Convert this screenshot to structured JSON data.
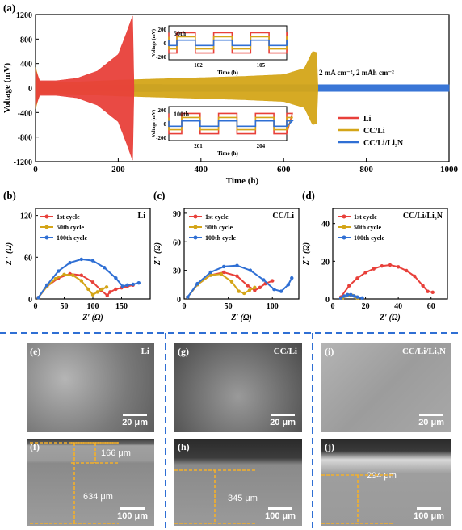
{
  "chart_data": [
    {
      "panel": "(a)",
      "type": "line",
      "xlabel": "Time (h)",
      "ylabel": "Voltage (mV)",
      "xlim": [
        0,
        1000
      ],
      "ylim": [
        -1200,
        1200
      ],
      "xticks": [
        0,
        200,
        400,
        600,
        800,
        1000
      ],
      "yticks": [
        -1200,
        -800,
        -400,
        0,
        400,
        800,
        1200
      ],
      "annotation": "2 mA cm⁻², 2 mAh cm⁻²",
      "series": [
        {
          "name": "Li",
          "color": "#e8403a",
          "envelope": {
            "x": [
              0,
              10,
              50,
              100,
              150,
              200,
              220,
              235,
              238
            ],
            "y": [
              300,
              120,
              120,
              160,
              280,
              550,
              900,
              1180,
              0
            ]
          }
        },
        {
          "name": "CC/Li",
          "color": "#d4a518",
          "envelope": {
            "x": [
              0,
              10,
              100,
              200,
              300,
              400,
              500,
              600,
              650,
              670,
              680,
              683
            ],
            "y": [
              340,
              90,
              100,
              130,
              150,
              170,
              190,
              220,
              320,
              600,
              580,
              0
            ]
          }
        },
        {
          "name": "CC/Li/Li₃N",
          "color": "#2f6fd4",
          "envelope": {
            "x": [
              0,
              10,
              200,
              400,
              600,
              800,
              1000
            ],
            "y": [
              250,
              60,
              60,
              55,
              55,
              55,
              55
            ]
          }
        }
      ],
      "insets": [
        {
          "label": "50th",
          "xlabel": "Time (h)",
          "ylabel": "Voltage (mV)",
          "xticks": [
            102,
            105
          ],
          "yticks": [
            -200,
            0,
            200
          ]
        },
        {
          "label": "100th",
          "xlabel": "Time (h)",
          "ylabel": "Voltage (mV)",
          "xticks": [
            201,
            204
          ],
          "yticks": [
            -200,
            0,
            200
          ]
        }
      ]
    },
    {
      "panel": "(b)",
      "type": "scatter",
      "sample": "Li",
      "xlabel": "Z′ (Ω)",
      "ylabel": "Z″ (Ω)",
      "xlim": [
        0,
        200
      ],
      "ylim": [
        0,
        130
      ],
      "xticks": [
        0,
        50,
        100,
        150
      ],
      "yticks": [
        0,
        60,
        120
      ],
      "series": [
        {
          "name": "1st cycle",
          "color": "#e8403a",
          "x": [
            5,
            20,
            40,
            60,
            80,
            100,
            115,
            125,
            130,
            140,
            150,
            160,
            170
          ],
          "y": [
            2,
            18,
            30,
            36,
            34,
            24,
            12,
            5,
            10,
            14,
            16,
            18,
            20
          ]
        },
        {
          "name": "50th cycle",
          "color": "#d4a518",
          "x": [
            5,
            20,
            35,
            50,
            65,
            80,
            92,
            100,
            108,
            116,
            124
          ],
          "y": [
            2,
            18,
            29,
            35,
            34,
            26,
            14,
            6,
            10,
            14,
            17
          ]
        },
        {
          "name": "100th cycle",
          "color": "#2f6fd4",
          "x": [
            5,
            20,
            40,
            60,
            80,
            100,
            120,
            140,
            152,
            160,
            170,
            180
          ],
          "y": [
            2,
            20,
            40,
            52,
            57,
            55,
            45,
            30,
            18,
            20,
            21,
            23
          ]
        }
      ]
    },
    {
      "panel": "(c)",
      "type": "scatter",
      "sample": "CC/Li",
      "xlabel": "Z′ (Ω)",
      "ylabel": "Z″ (Ω)",
      "xlim": [
        0,
        130
      ],
      "ylim": [
        0,
        95
      ],
      "xticks": [
        0,
        50,
        100
      ],
      "yticks": [
        0,
        30,
        60,
        90
      ],
      "series": [
        {
          "name": "1st cycle",
          "color": "#e8403a",
          "x": [
            4,
            15,
            30,
            45,
            60,
            72,
            80,
            86,
            92,
            100
          ],
          "y": [
            2,
            15,
            25,
            28,
            24,
            14,
            9,
            12,
            16,
            19
          ]
        },
        {
          "name": "50th cycle",
          "color": "#d4a518",
          "x": [
            4,
            15,
            30,
            42,
            54,
            62,
            68,
            74,
            80
          ],
          "y": [
            2,
            15,
            25,
            26,
            18,
            8,
            6,
            9,
            12
          ]
        },
        {
          "name": "100th cycle",
          "color": "#2f6fd4",
          "x": [
            4,
            15,
            30,
            45,
            60,
            75,
            90,
            102,
            110,
            118,
            122
          ],
          "y": [
            2,
            16,
            28,
            34,
            35,
            30,
            20,
            10,
            8,
            15,
            22
          ]
        }
      ]
    },
    {
      "panel": "(d)",
      "type": "scatter",
      "sample": "CC/Li/Li₃N",
      "xlabel": "Z′ (Ω)",
      "ylabel": "Z″ (Ω)",
      "xlim": [
        0,
        70
      ],
      "ylim": [
        0,
        48
      ],
      "xticks": [
        0,
        20,
        40,
        60
      ],
      "yticks": [
        0,
        20,
        40
      ],
      "series": [
        {
          "name": "1st cycle",
          "color": "#e8403a",
          "x": [
            5,
            10,
            15,
            20,
            25,
            30,
            35,
            40,
            45,
            50,
            55,
            58,
            61
          ],
          "y": [
            1,
            7,
            11,
            14,
            16,
            17.5,
            18,
            17,
            15,
            12,
            7,
            4,
            3.5
          ]
        },
        {
          "name": "50th cycle",
          "color": "#d4a518",
          "x": [
            6,
            8,
            10,
            12,
            14,
            15
          ],
          "y": [
            0.5,
            1.5,
            2,
            1.8,
            1,
            0.5
          ]
        },
        {
          "name": "100th cycle",
          "color": "#2f6fd4",
          "x": [
            5,
            7,
            9,
            11,
            13,
            15,
            18
          ],
          "y": [
            0.5,
            1.5,
            2.2,
            2.2,
            1.6,
            1,
            0.5
          ]
        }
      ]
    }
  ],
  "sem": [
    {
      "label": "(e)",
      "sample": "Li",
      "scale": "20 μm"
    },
    {
      "label": "(g)",
      "sample": "CC/Li",
      "scale": "20 μm"
    },
    {
      "label": "(i)",
      "sample": "CC/Li/Li₃N",
      "scale": "20 μm"
    },
    {
      "label": "(f)",
      "thickness": [
        "166 μm",
        "634 μm"
      ],
      "scale": "100 μm"
    },
    {
      "label": "(h)",
      "thickness": [
        "345 μm"
      ],
      "scale": "100 μm"
    },
    {
      "label": "(j)",
      "thickness": [
        "294 μm"
      ],
      "scale": "100 μm"
    }
  ]
}
